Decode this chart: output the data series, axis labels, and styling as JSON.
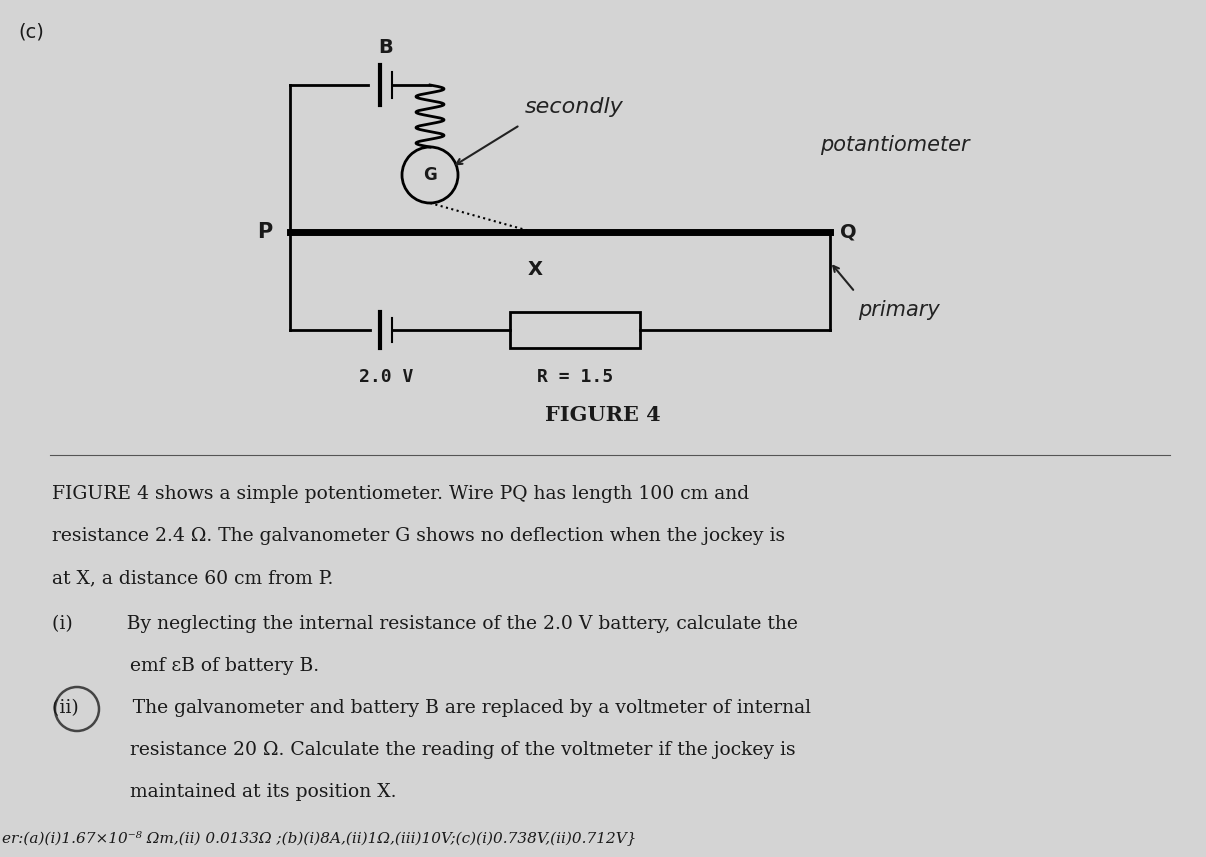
{
  "bg_color": "#d4d4d4",
  "title": "FIGURE 4",
  "title_fontsize": 15,
  "label_c": "(c)",
  "P_label": "P",
  "Q_label": "Q",
  "B_label": "B",
  "G_label": "G",
  "X_label": "X",
  "battery_label": "2.0 V",
  "resistor_label": "R = 1.5",
  "annotation1": "secondly",
  "annotation2": "potantiometer",
  "annotation3": "primary",
  "text_color": "#1a1a1a",
  "body_lines": [
    "FIGURE 4 shows a simple potentiometer. Wire PQ has length 100 cm and",
    "resistance 2.4 Ω. The galvanometer G shows no deflection when the jockey is",
    "at X, a distance 60 cm from P.",
    "(i)         By neglecting the internal resistance of the 2.0 V battery, calculate the",
    "             emf εB of battery B.",
    "(ii)         The galvanometer and battery B are replaced by a voltmeter of internal",
    "             resistance 20 Ω. Calculate the reading of the voltmeter if the jockey is",
    "             maintained at its position X."
  ],
  "answer_line": "er:(a)(i)1.67×10⁻⁸ Ωm,(ii) 0.0133Ω ;(b)(i)8A,(ii)1Ω,(iii)10V;(c)(i)0.738V,(ii)0.712V}"
}
